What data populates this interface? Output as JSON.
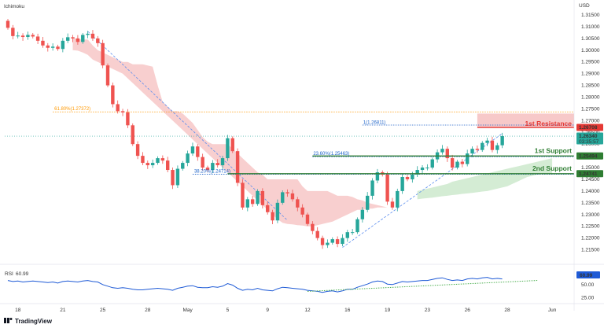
{
  "header": {
    "indicator_name": "Ichimoku",
    "currency": "USD"
  },
  "branding": {
    "name": "TradingView"
  },
  "colors": {
    "bull": "#26a69a",
    "bear": "#ef5350",
    "cloud": "#f8cfcf",
    "cloud_green": "#d4ecd4",
    "resistance": "#e53935",
    "support": "#2e7d32",
    "fib_orange": "#ff9800",
    "fib_blue": "#1e63c8",
    "trend": "#5b8def",
    "rsi": "#1e5ad6",
    "rsi_trend": "#4caf50"
  },
  "chart_data": {
    "type": "candlestick",
    "y_ticks": [
      "1.31500",
      "1.31000",
      "1.30500",
      "1.30000",
      "1.29500",
      "1.29000",
      "1.28500",
      "1.28000",
      "1.27500",
      "1.27000",
      "1.26500",
      "1.26000",
      "1.25500",
      "1.25000",
      "1.24500",
      "1.24000",
      "1.23500",
      "1.23000",
      "1.22500",
      "1.22000",
      "1.21500"
    ],
    "ylim": [
      1.2115,
      1.317
    ],
    "x_ticks": [
      {
        "label": "18",
        "index": 2
      },
      {
        "label": "21",
        "index": 11
      },
      {
        "label": "25",
        "index": 19
      },
      {
        "label": "28",
        "index": 28
      },
      {
        "label": "May",
        "index": 36
      },
      {
        "label": "5",
        "index": 44
      },
      {
        "label": "9",
        "index": 52
      },
      {
        "label": "12",
        "index": 60
      },
      {
        "label": "16",
        "index": 68
      },
      {
        "label": "19",
        "index": 76
      },
      {
        "label": "23",
        "index": 84
      },
      {
        "label": "26",
        "index": 92
      },
      {
        "label": "28",
        "index": 100
      },
      {
        "label": "Jun",
        "index": 109
      }
    ],
    "closes": [
      1.3095,
      1.306,
      1.3062,
      1.3056,
      1.3065,
      1.3058,
      1.304,
      1.302,
      1.301,
      1.3015,
      1.3005,
      1.304,
      1.3055,
      1.305,
      1.3035,
      1.3065,
      1.307,
      1.305,
      1.303,
      1.2935,
      1.285,
      1.277,
      1.274,
      1.2735,
      1.268,
      1.26,
      1.255,
      1.252,
      1.251,
      1.252,
      1.254,
      1.253,
      1.249,
      1.2425,
      1.2495,
      1.252,
      1.256,
      1.259,
      1.2545,
      1.25,
      1.249,
      1.252,
      1.251,
      1.254,
      1.2625,
      1.257,
      1.2435,
      1.233,
      1.2365,
      1.2345,
      1.24,
      1.234,
      1.231,
      1.2275,
      1.235,
      1.2395,
      1.239,
      1.2365,
      1.233,
      1.23,
      1.226,
      1.223,
      1.22,
      1.217,
      1.218,
      1.2195,
      1.2175,
      1.22,
      1.2225,
      1.2225,
      1.228,
      1.232,
      1.238,
      1.2445,
      1.248,
      1.247,
      1.2355,
      1.233,
      1.24,
      1.246,
      1.245,
      1.247,
      1.249,
      1.25,
      1.25,
      1.2535,
      1.2565,
      1.258,
      1.254,
      1.25,
      1.2525,
      1.2515,
      1.256,
      1.258,
      1.2575,
      1.2605,
      1.2615,
      1.2575,
      1.2595,
      1.2634
    ],
    "cloud_red": {
      "start": 13,
      "end": 76,
      "top": [
        1.305,
        1.3048,
        1.3045,
        1.3045,
        1.302,
        1.3,
        1.299,
        1.298,
        1.297,
        1.296,
        1.295,
        1.295,
        1.294,
        1.294,
        1.294,
        1.2935,
        1.293,
        1.285,
        1.278,
        1.276,
        1.274,
        1.274,
        1.273,
        1.271,
        1.269,
        1.266,
        1.263,
        1.261,
        1.26,
        1.26,
        1.26,
        1.26,
        1.258,
        1.256,
        1.254,
        1.252,
        1.25,
        1.248,
        1.247,
        1.245,
        1.245,
        1.245,
        1.245,
        1.245,
        1.245,
        1.245,
        1.242,
        1.24,
        1.24,
        1.24,
        1.24,
        1.24,
        1.239,
        1.238,
        1.238,
        1.238,
        1.2375,
        1.2365,
        1.236,
        1.235,
        1.2345,
        1.234,
        1.2335,
        1.233
      ],
      "bottom": [
        1.3,
        1.2998,
        1.299,
        1.298,
        1.296,
        1.295,
        1.294,
        1.293,
        1.292,
        1.291,
        1.29,
        1.288,
        1.286,
        1.284,
        1.282,
        1.28,
        1.278,
        1.276,
        1.274,
        1.272,
        1.27,
        1.268,
        1.266,
        1.264,
        1.262,
        1.26,
        1.258,
        1.256,
        1.254,
        1.252,
        1.25,
        1.248,
        1.246,
        1.244,
        1.242,
        1.24,
        1.238,
        1.236,
        1.234,
        1.232,
        1.23,
        1.228,
        1.2265,
        1.226,
        1.2258,
        1.2255,
        1.2253,
        1.225,
        1.225,
        1.2255,
        1.226,
        1.2265,
        1.227,
        1.228,
        1.229,
        1.23,
        1.231,
        1.232,
        1.232,
        1.2325,
        1.2325,
        1.233,
        1.233,
        1.233
      ]
    },
    "cloud_green": {
      "start": 82,
      "end": 109,
      "top": [
        1.24,
        1.2405,
        1.241,
        1.2415,
        1.242,
        1.2425,
        1.243,
        1.244,
        1.2445,
        1.245,
        1.2455,
        1.246,
        1.2465,
        1.247,
        1.2475,
        1.248,
        1.2485,
        1.249,
        1.2495,
        1.25,
        1.2505,
        1.251,
        1.2515,
        1.252,
        1.2525,
        1.253,
        1.2535,
        1.254
      ],
      "bottom": [
        1.2365,
        1.2368,
        1.237,
        1.2372,
        1.2375,
        1.2378,
        1.238,
        1.2383,
        1.2385,
        1.2388,
        1.239,
        1.2392,
        1.2395,
        1.2398,
        1.24,
        1.2405,
        1.241,
        1.2415,
        1.242,
        1.243,
        1.244,
        1.245,
        1.246,
        1.2465,
        1.247,
        1.2472,
        1.2474,
        1.2476
      ]
    },
    "rsi": {
      "label": "RSI",
      "value_text": "60.99",
      "ticks": [
        "50.00",
        "25.00"
      ],
      "ylim": [
        15,
        80
      ],
      "values": [
        58,
        56,
        57,
        55,
        56,
        57,
        56,
        55,
        54,
        55,
        53,
        56,
        57,
        56,
        55,
        57,
        58,
        56,
        55,
        50,
        47,
        44,
        43,
        44,
        43,
        41,
        40,
        40,
        41,
        42,
        43,
        42,
        41,
        39,
        43,
        45,
        47,
        48,
        45,
        44,
        44,
        46,
        45,
        47,
        52,
        49,
        43,
        39,
        41,
        40,
        43,
        40,
        39,
        38,
        42,
        45,
        44,
        43,
        42,
        41,
        39,
        38,
        37,
        35,
        37,
        38,
        36,
        38,
        41,
        41,
        45,
        48,
        51,
        55,
        57,
        56,
        51,
        50,
        53,
        56,
        55,
        56,
        57,
        58,
        58,
        60,
        62,
        63,
        60,
        58,
        59,
        58,
        61,
        62,
        61,
        63,
        64,
        61,
        62,
        60.99
      ],
      "trend": {
        "from_index": 60,
        "from_value": 37,
        "to_index": 106,
        "to_value": 58
      }
    },
    "levels": {
      "resistance": {
        "label": "1st Resistance",
        "price_label": "1.26708",
        "value": 1.26708
      },
      "support1": {
        "label": "1st Support",
        "price_label": "1.25494",
        "value": 1.25494
      },
      "support2": {
        "label": "2nd Support",
        "price_label": "1.24741",
        "value": 1.24741
      },
      "current": {
        "price_label": "1.26340",
        "countdown": "03:35:57",
        "value": 1.2634
      },
      "fib_61": {
        "label": "61.80%(1.27372)",
        "value": 1.27372
      },
      "fib_100": {
        "label": "1(1.26811)",
        "value": 1.26811
      },
      "fib_23": {
        "label": "23.60%(1.25463)",
        "value": 1.25463
      },
      "fib_38": {
        "label": "38.20%(1.24714)",
        "value": 1.24714
      }
    }
  }
}
